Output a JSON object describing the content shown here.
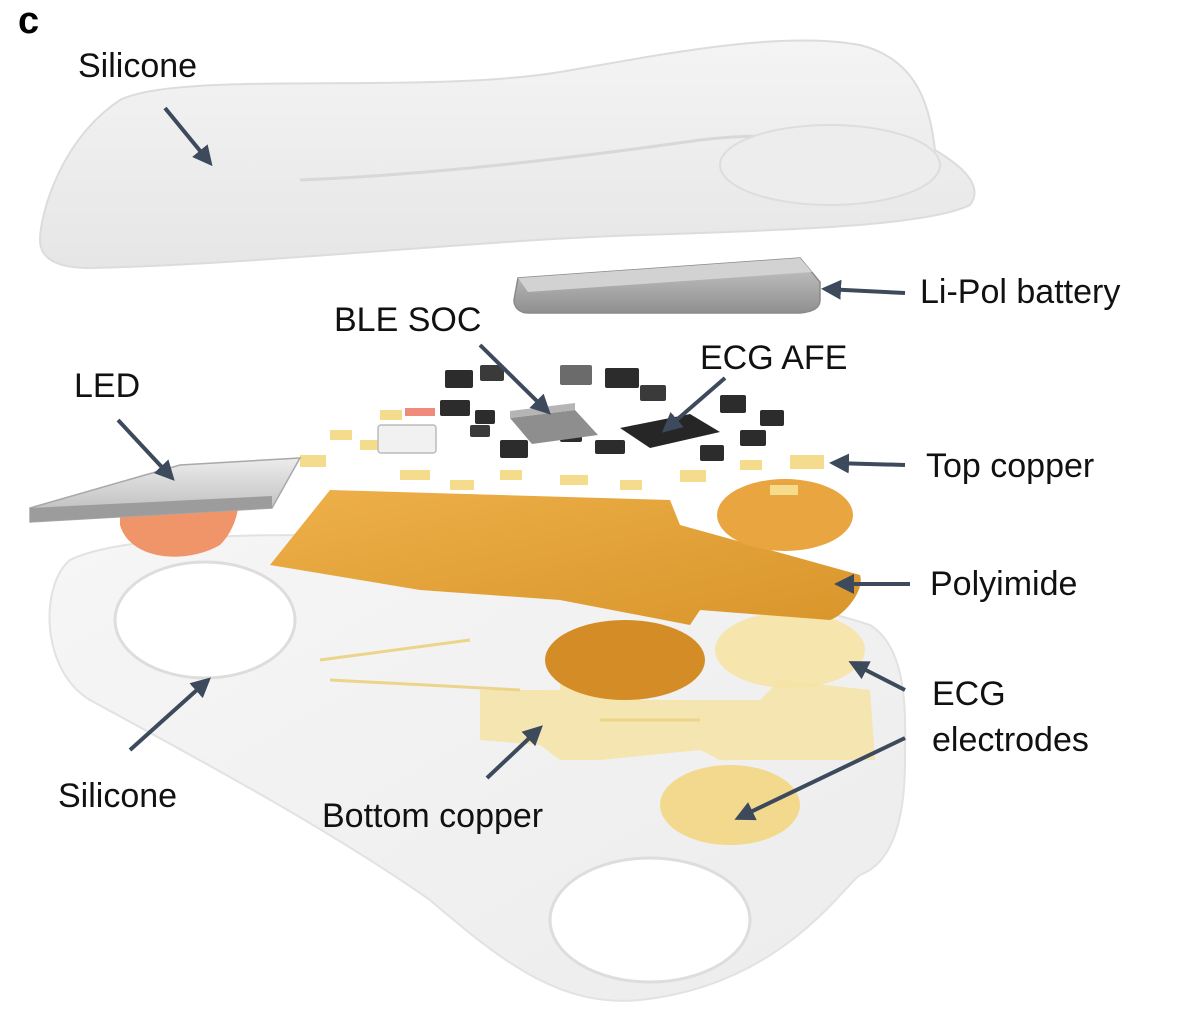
{
  "panel_letter": "c",
  "labels": {
    "silicone_top": "Silicone",
    "battery": "Li-Pol battery",
    "ble_soc": "BLE SOC",
    "ecg_afe": "ECG AFE",
    "led": "LED",
    "top_copper": "Top copper",
    "polyimide": "Polyimide",
    "ecg_electrodes_line1": "ECG",
    "ecg_electrodes_line2": "electrodes",
    "silicone_bottom": "Silicone",
    "bottom_copper": "Bottom copper"
  },
  "colors": {
    "arrow": "#3d4a5c",
    "polyimide": "#e7a63a",
    "copper_light": "#f4dc8c",
    "silicone": "#f2f2f2",
    "battery": "#a9a9a9",
    "led_lens": "#f0956a",
    "chip_dark": "#2c2c2c"
  }
}
